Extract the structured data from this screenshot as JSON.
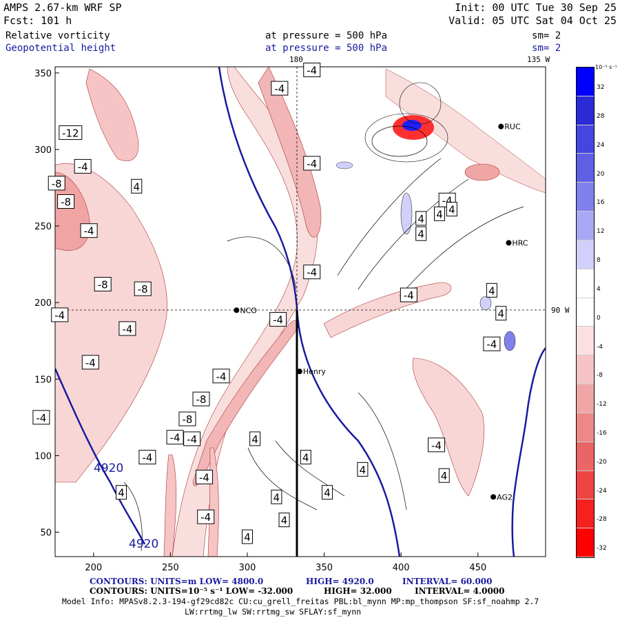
{
  "header": {
    "model": "AMPS 2.67-km WRF SP",
    "forecast": "Fcst:  101 h",
    "init": "Init: 00 UTC Tue 30 Sep 25",
    "valid": "Valid: 05 UTC Sat 04 Oct 25",
    "field1": "Relative vorticity",
    "field1_level": "at pressure =  500 hPa",
    "field1_sm": "sm= 2",
    "field2": "Geopotential height",
    "field2_level": "at pressure =  500 hPa",
    "field2_sm": "sm= 2"
  },
  "map": {
    "meridian_180": "180",
    "meridian_135": "135 W",
    "meridian_90": "90 W",
    "stations": [
      {
        "name": "RUC",
        "x": 465,
        "y": 315
      },
      {
        "name": "HRC",
        "x": 470,
        "y": 239
      },
      {
        "name": "NCO",
        "x": 293,
        "y": 195
      },
      {
        "name": "Henry",
        "x": 334,
        "y": 155
      },
      {
        "name": "AG2",
        "x": 460,
        "y": 73
      }
    ],
    "x_ticks": [
      "200",
      "250",
      "300",
      "350",
      "400",
      "450"
    ],
    "y_ticks": [
      "350",
      "300",
      "250",
      "200",
      "150",
      "100",
      "50"
    ],
    "height_labels": [
      "4920",
      "4920"
    ],
    "vort_labels": [
      {
        "t": "-4",
        "x": 342,
        "y": 352
      },
      {
        "t": "-4",
        "x": 321,
        "y": 340
      },
      {
        "t": "-12",
        "x": 185,
        "y": 311
      },
      {
        "t": "-4",
        "x": 193,
        "y": 289
      },
      {
        "t": "-4",
        "x": 342,
        "y": 291
      },
      {
        "t": "-8",
        "x": 176,
        "y": 278
      },
      {
        "t": "4",
        "x": 228,
        "y": 276
      },
      {
        "t": "-8",
        "x": 182,
        "y": 266
      },
      {
        "t": "-4",
        "x": 430,
        "y": 267
      },
      {
        "t": "4",
        "x": 433,
        "y": 261
      },
      {
        "t": "4",
        "x": 425,
        "y": 258
      },
      {
        "t": "4",
        "x": 413,
        "y": 255
      },
      {
        "t": "-4",
        "x": 197,
        "y": 247
      },
      {
        "t": "4",
        "x": 413,
        "y": 245
      },
      {
        "t": "-4",
        "x": 342,
        "y": 220
      },
      {
        "t": "-8",
        "x": 206,
        "y": 212
      },
      {
        "t": "-8",
        "x": 232,
        "y": 209
      },
      {
        "t": "-4",
        "x": 405,
        "y": 205
      },
      {
        "t": "4",
        "x": 459,
        "y": 208
      },
      {
        "t": "-4",
        "x": 178,
        "y": 192
      },
      {
        "t": "-4",
        "x": 320,
        "y": 189
      },
      {
        "t": "4",
        "x": 465,
        "y": 193
      },
      {
        "t": "-4",
        "x": 222,
        "y": 183
      },
      {
        "t": "-4",
        "x": 459,
        "y": 173
      },
      {
        "t": "-4",
        "x": 198,
        "y": 161
      },
      {
        "t": "-4",
        "x": 283,
        "y": 152
      },
      {
        "t": "-8",
        "x": 270,
        "y": 137
      },
      {
        "t": "-8",
        "x": 261,
        "y": 124
      },
      {
        "t": "-4",
        "x": 166,
        "y": 125
      },
      {
        "t": "-4",
        "x": 253,
        "y": 112
      },
      {
        "t": "-4",
        "x": 264,
        "y": 111
      },
      {
        "t": "4",
        "x": 305,
        "y": 111
      },
      {
        "t": "-4",
        "x": 423,
        "y": 107
      },
      {
        "t": "4",
        "x": 338,
        "y": 99
      },
      {
        "t": "-4",
        "x": 235,
        "y": 99
      },
      {
        "t": "4",
        "x": 375,
        "y": 91
      },
      {
        "t": "4",
        "x": 428,
        "y": 87
      },
      {
        "t": "-4",
        "x": 272,
        "y": 86
      },
      {
        "t": "4",
        "x": 218,
        "y": 76
      },
      {
        "t": "4",
        "x": 319,
        "y": 73
      },
      {
        "t": "4",
        "x": 352,
        "y": 76
      },
      {
        "t": "-4",
        "x": 273,
        "y": 60
      },
      {
        "t": "4",
        "x": 324,
        "y": 58
      },
      {
        "t": "4",
        "x": 300,
        "y": 47
      }
    ]
  },
  "colorbar": {
    "unit": "10⁻⁵ s⁻¹",
    "labels": [
      "32",
      "28",
      "24",
      "20",
      "16",
      "12",
      "8",
      "4",
      "0",
      "-4",
      "-8",
      "-12",
      "-16",
      "-20",
      "-24",
      "-28",
      "-32"
    ],
    "colors": [
      "#0000ff",
      "#2a2ad6",
      "#4545e0",
      "#5f5fe6",
      "#8080ee",
      "#a8a8f4",
      "#d0d0fa",
      "#ffffff",
      "#ffffff",
      "#fbe0e0",
      "#f6c4c4",
      "#f1a6a6",
      "#ec8888",
      "#ea6666",
      "#ee4444",
      "#f52020",
      "#ff0000"
    ]
  },
  "footer": {
    "line1_a": "CONTOURS:  UNITS=m  LOW=  4800.0",
    "line1_b": "HIGH=  4920.0",
    "line1_c": "INTERVAL=   60.000",
    "line2_a": "CONTOURS:  UNITS=10⁻⁵ s⁻¹  LOW= -32.000",
    "line2_b": "HIGH=  32.000",
    "line2_c": "INTERVAL=   4.0000",
    "info1": "Model Info: MPASv8.2.3-194-gf29cd82c CU:cu_grell_freitas PBL:bl_mynn MP:mp_thompson SF:sf_noahmp 2.7",
    "info2": "LW:rrtmg_lw SW:rrtmg_sw SFLAY:sf_mynn"
  },
  "colors": {
    "height": "#1a1aa0",
    "positive": "#0000ff",
    "negative": "#ff0000"
  }
}
